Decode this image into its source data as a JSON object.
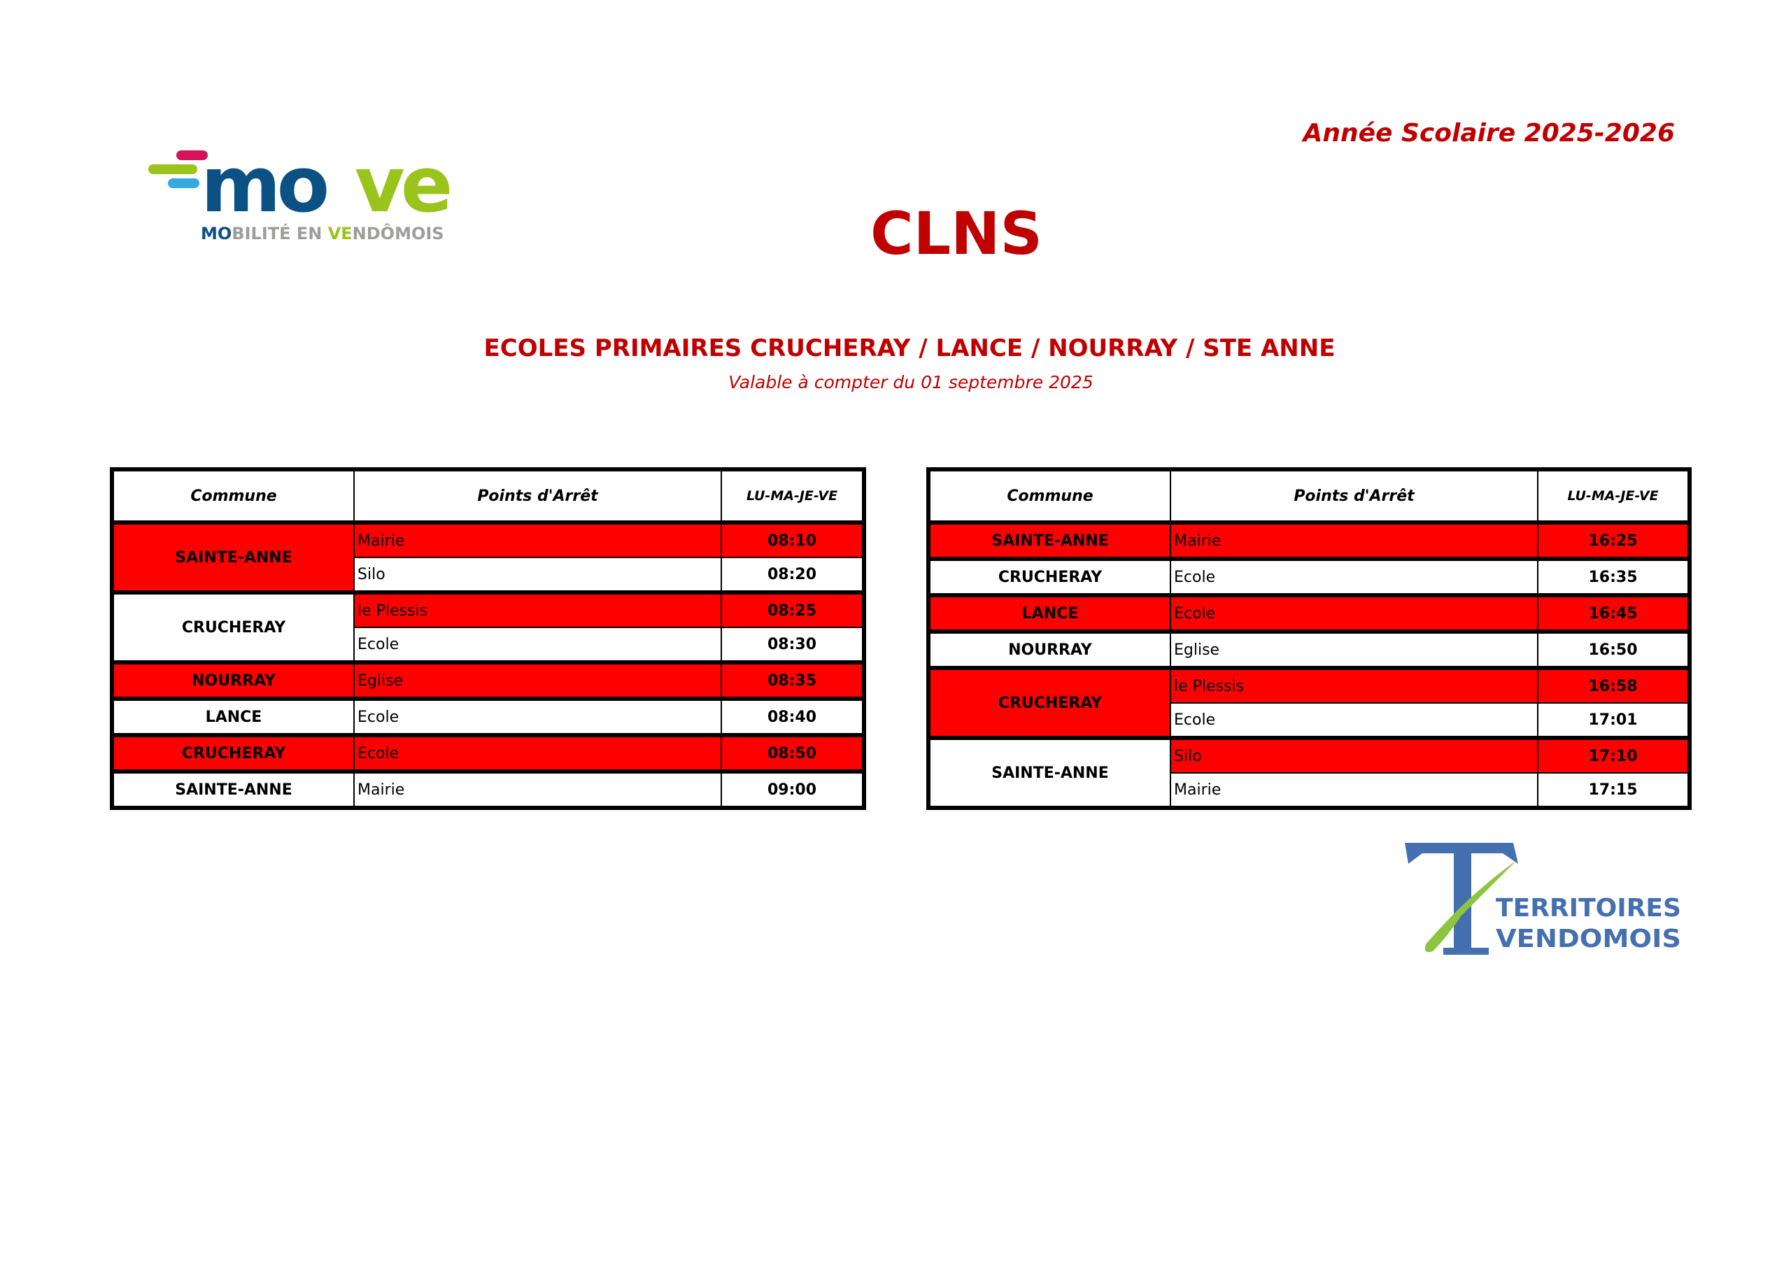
{
  "header": {
    "logo_move": {
      "word": "move",
      "tagline": "MOBILITÉ EN VENDÔMOIS",
      "colors": {
        "blue": "#0b5184",
        "green": "#9ac31c",
        "pink": "#d4145a",
        "lightblue": "#36a9e1",
        "grey": "#9d9d9c"
      }
    },
    "school_year": "Année Scolaire 2025-2026",
    "line_name": "CLNS",
    "subtitle": "ECOLES PRIMAIRES CRUCHERAY / LANCE / NOURRAY / STE ANNE",
    "validity": "Valable à compter du 01 septembre 2025"
  },
  "colors": {
    "accent_text": "#c00000",
    "highlight": "#ff0000"
  },
  "columns": {
    "commune": "Commune",
    "stops": "Points d'Arrêt",
    "days": "LU-MA-JE-VE"
  },
  "morning": [
    {
      "commune": "SAINTE-ANNE",
      "highlight": true,
      "stops": [
        {
          "name": "Mairie",
          "time": "08:10",
          "highlight": true
        },
        {
          "name": "Silo",
          "time": "08:20",
          "highlight": false
        }
      ]
    },
    {
      "commune": "CRUCHERAY",
      "highlight": false,
      "stops": [
        {
          "name": "le Plessis",
          "time": "08:25",
          "highlight": true
        },
        {
          "name": "Ecole",
          "time": "08:30",
          "highlight": false
        }
      ]
    },
    {
      "commune": "NOURRAY",
      "highlight": true,
      "stops": [
        {
          "name": "Eglise",
          "time": "08:35",
          "highlight": true
        }
      ]
    },
    {
      "commune": "LANCE",
      "highlight": false,
      "stops": [
        {
          "name": "Ecole",
          "time": "08:40",
          "highlight": false
        }
      ]
    },
    {
      "commune": "CRUCHERAY",
      "highlight": true,
      "stops": [
        {
          "name": "Ecole",
          "time": "08:50",
          "highlight": true
        }
      ]
    },
    {
      "commune": "SAINTE-ANNE",
      "highlight": false,
      "stops": [
        {
          "name": "Mairie",
          "time": "09:00",
          "highlight": false
        }
      ]
    }
  ],
  "afternoon": [
    {
      "commune": "SAINTE-ANNE",
      "highlight": true,
      "stops": [
        {
          "name": "Mairie",
          "time": "16:25",
          "highlight": true
        }
      ]
    },
    {
      "commune": "CRUCHERAY",
      "highlight": false,
      "stops": [
        {
          "name": "Ecole",
          "time": "16:35",
          "highlight": false
        }
      ]
    },
    {
      "commune": "LANCE",
      "highlight": true,
      "stops": [
        {
          "name": "Ecole",
          "time": "16:45",
          "highlight": true
        }
      ]
    },
    {
      "commune": "NOURRAY",
      "highlight": false,
      "stops": [
        {
          "name": "Eglise",
          "time": "16:50",
          "highlight": false
        }
      ]
    },
    {
      "commune": "CRUCHERAY",
      "highlight": true,
      "stops": [
        {
          "name": "le Plessis",
          "time": "16:58",
          "highlight": true
        },
        {
          "name": "Ecole",
          "time": "17:01",
          "highlight": false
        }
      ]
    },
    {
      "commune": "SAINTE-ANNE",
      "highlight": false,
      "stops": [
        {
          "name": "Silo",
          "time": "17:10",
          "highlight": true
        },
        {
          "name": "Mairie",
          "time": "17:15",
          "highlight": false
        }
      ]
    }
  ],
  "footer": {
    "logo_territoires": {
      "line1": "TERRITOIRES",
      "line2": "VENDOMOIS",
      "colors": {
        "blue": "#4470b0",
        "green": "#8cc63f"
      }
    }
  }
}
